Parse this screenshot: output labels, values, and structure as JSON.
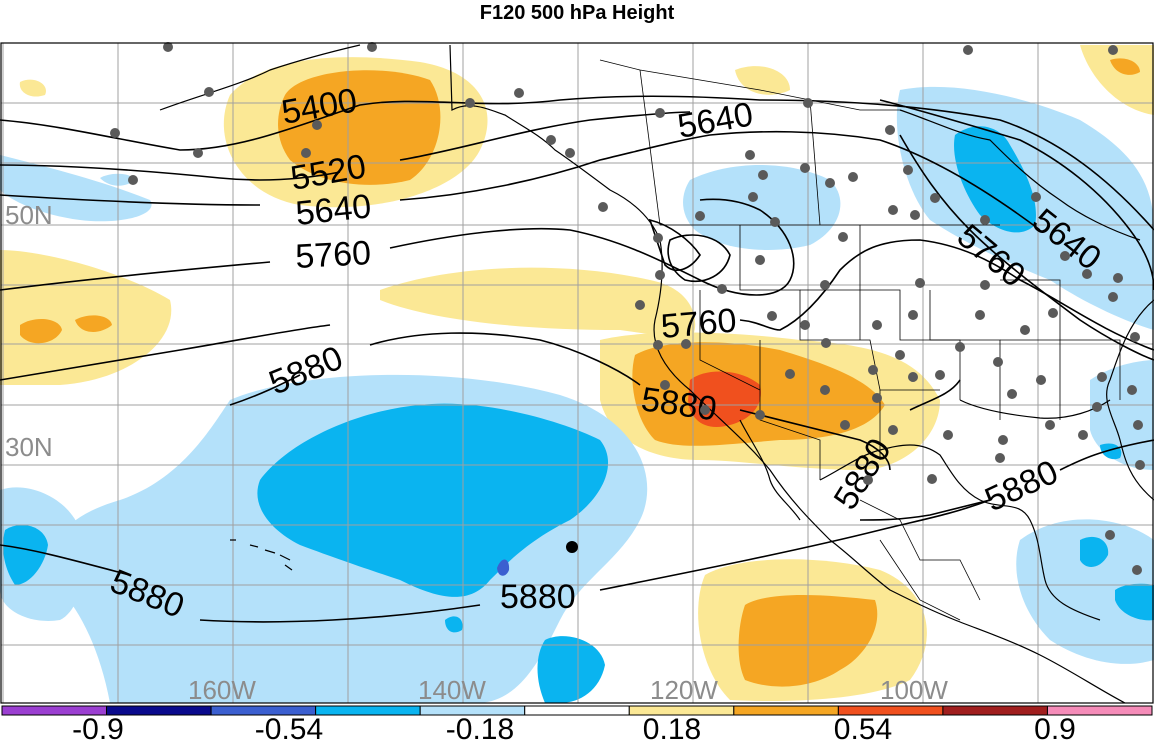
{
  "title": "F120 500 hPa Height",
  "latitude_labels": [
    "50N",
    "30N"
  ],
  "longitude_labels": [
    "160W",
    "140W",
    "120W",
    "100W"
  ],
  "contour_labels": [
    "5400",
    "5520",
    "5640",
    "5760",
    "5880",
    "5640",
    "5760",
    "5640",
    "5760",
    "5880",
    "5880",
    "5880",
    "5880"
  ],
  "colorbar": {
    "colors": [
      "#9b3fd1",
      "#0a0a8c",
      "#3b5fd0",
      "#0ab4f0",
      "#b4e1fa",
      "#ffffff",
      "#fbe895",
      "#f5a623",
      "#f0501e",
      "#a01e1e",
      "#f58cb9"
    ],
    "tick_labels": [
      "-0.9",
      "-0.54",
      "-0.18",
      "0.18",
      "0.54",
      "0.9"
    ]
  },
  "colors": {
    "light_blue": "#b4e1fa",
    "mid_blue": "#0ab4f0",
    "dark_blue": "#3b5fd0",
    "light_yellow": "#fbe895",
    "orange": "#f5a623",
    "red_orange": "#f0501e",
    "grid": "#a0a0a0",
    "station_dot": "#5a5a5a"
  }
}
